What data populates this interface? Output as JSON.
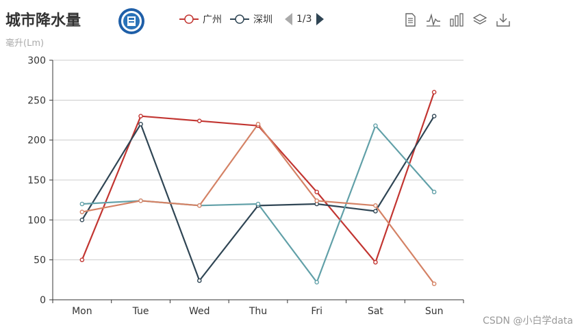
{
  "title": "城市降水量",
  "subtitle": "毫升(Lm)",
  "legend": {
    "items": [
      {
        "name": "广州",
        "color": "#c23531"
      },
      {
        "name": "深圳",
        "color": "#2f4554"
      }
    ],
    "page": "1/3"
  },
  "toolbox": [
    "data-view-icon",
    "line-chart-icon",
    "bar-chart-icon",
    "stack-icon",
    "save-image-icon"
  ],
  "watermark": "CSDN @小白学data",
  "chart_data": {
    "type": "line",
    "categories": [
      "Mon",
      "Tue",
      "Wed",
      "Thu",
      "Fri",
      "Sat",
      "Sun"
    ],
    "ylim": [
      0,
      300
    ],
    "yticks": [
      0,
      50,
      100,
      150,
      200,
      250,
      300
    ],
    "grid": true,
    "series": [
      {
        "name": "广州",
        "color": "#c23531",
        "values": [
          50,
          230,
          224,
          218,
          135,
          47,
          260
        ]
      },
      {
        "name": "深圳",
        "color": "#2f4554",
        "values": [
          100,
          220,
          24,
          118,
          120,
          111,
          230
        ]
      },
      {
        "color": "#61a0a8",
        "values": [
          120,
          124,
          118,
          120,
          22,
          218,
          135
        ]
      },
      {
        "color": "#d48265",
        "values": [
          110,
          124,
          118,
          220,
          124,
          118,
          20
        ]
      }
    ]
  }
}
